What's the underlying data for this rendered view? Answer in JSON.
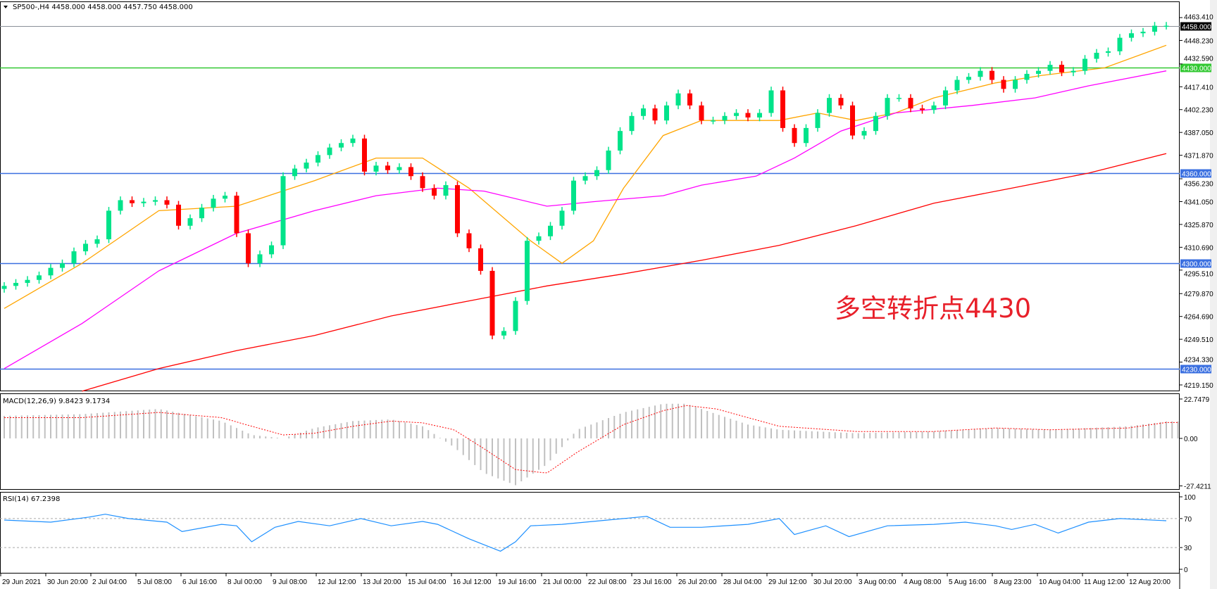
{
  "header": {
    "symbol_line": "SP500-,H4  4458.000 4458.000 4457.750 4458.000"
  },
  "annotation": {
    "text": "多空转折点4430",
    "color": "#e8202a"
  },
  "colors": {
    "bull": "#00e38a",
    "bear": "#ff0000",
    "ma_fast": "#ffa500",
    "ma_mid": "#ff00ff",
    "ma_slow": "#ff0000",
    "level_blue": "#3a6fe0",
    "level_green": "#32c832",
    "level_gray": "#8a9099",
    "macd_hist": "#c0c0c0",
    "macd_signal": "#ff0000",
    "rsi": "#1e90ff"
  },
  "chart_data": [
    {
      "type": "candlestick",
      "title": "SP500-,H4",
      "ylim": [
        4219.15,
        4463.41
      ],
      "y_ticks": [
        "4463.410",
        "4448.230",
        "4432.590",
        "4417.410",
        "4402.230",
        "4387.050",
        "4371.870",
        "4356.230",
        "4341.050",
        "4325.870",
        "4310.690",
        "4295.510",
        "4279.870",
        "4264.690",
        "4249.510",
        "4234.330",
        "4219.150"
      ],
      "x_tick_labels": [
        "29 Jun 2021",
        "30 Jun 20:00",
        "2 Jul 04:00",
        "5 Jul 08:00",
        "6 Jul 16:00",
        "8 Jul 00:00",
        "9 Jul 08:00",
        "12 Jul 12:00",
        "13 Jul 20:00",
        "15 Jul 04:00",
        "16 Jul 12:00",
        "19 Jul 16:00",
        "21 Jul 00:00",
        "22 Jul 08:00",
        "23 Jul 16:00",
        "26 Jul 20:00",
        "28 Jul 04:00",
        "29 Jul 12:00",
        "30 Jul 20:00",
        "3 Aug 00:00",
        "4 Aug 08:00",
        "5 Aug 16:00",
        "8 Aug 23:00",
        "10 Aug 04:00",
        "11 Aug 12:00",
        "12 Aug 20:00"
      ],
      "closes": [
        4285,
        4287,
        4289,
        4292,
        4297,
        4300,
        4308,
        4313,
        4316,
        4335,
        4342,
        4340,
        4341,
        4342,
        4339,
        4325,
        4330,
        4337,
        4343,
        4345,
        4320,
        4300,
        4306,
        4312,
        4358,
        4363,
        4367,
        4372,
        4377,
        4380,
        4383,
        4361,
        4365,
        4362,
        4364,
        4358,
        4350,
        4345,
        4352,
        4320,
        4310,
        4295,
        4252,
        4255,
        4275,
        4315,
        4318,
        4325,
        4335,
        4355,
        4358,
        4362,
        4375,
        4388,
        4398,
        4403,
        4395,
        4405,
        4413,
        4405,
        4395,
        4395,
        4398,
        4400,
        4397,
        4400,
        4415,
        4390,
        4380,
        4390,
        4400,
        4410,
        4405,
        4385,
        4388,
        4398,
        4410,
        4410,
        4403,
        4402,
        4405,
        4415,
        4422,
        4424,
        4428,
        4422,
        4416,
        4422,
        4426,
        4428,
        4432,
        4427,
        4428,
        4436,
        4440,
        4441,
        4450,
        4453,
        4454,
        4458,
        4458
      ],
      "moving_averages": [
        {
          "points": [
            [
              0,
              4270
            ],
            [
              6.7,
              4300
            ],
            [
              13.3,
              4335
            ],
            [
              20,
              4338
            ],
            [
              26.7,
              4355
            ],
            [
              32,
              4370
            ],
            [
              36,
              4370
            ],
            [
              40,
              4350
            ],
            [
              45.3,
              4315
            ],
            [
              48,
              4300
            ],
            [
              50.7,
              4315
            ],
            [
              53.3,
              4350
            ],
            [
              56.7,
              4385
            ],
            [
              60,
              4395
            ],
            [
              64,
              4395
            ],
            [
              66.7,
              4395
            ],
            [
              70,
              4400
            ],
            [
              73.3,
              4395
            ],
            [
              76.7,
              4400
            ],
            [
              80,
              4410
            ],
            [
              85.3,
              4420
            ],
            [
              89.3,
              4425
            ],
            [
              94.7,
              4430
            ],
            [
              100,
              4445
            ]
          ]
        },
        {
          "points": [
            [
              0,
              4230
            ],
            [
              6.7,
              4260
            ],
            [
              13.3,
              4295
            ],
            [
              20,
              4320
            ],
            [
              26.7,
              4335
            ],
            [
              32,
              4345
            ],
            [
              37.3,
              4350
            ],
            [
              41.3,
              4348
            ],
            [
              46.7,
              4338
            ],
            [
              50.7,
              4341
            ],
            [
              56.7,
              4345
            ],
            [
              60,
              4352
            ],
            [
              64.7,
              4358
            ],
            [
              68,
              4370
            ],
            [
              72,
              4388
            ],
            [
              76.7,
              4400
            ],
            [
              83.3,
              4405
            ],
            [
              88.7,
              4410
            ],
            [
              93.3,
              4418
            ],
            [
              100,
              4428
            ]
          ]
        },
        {
          "points": [
            [
              6.7,
              4215
            ],
            [
              13.3,
              4230
            ],
            [
              20,
              4242
            ],
            [
              26.7,
              4252
            ],
            [
              33.3,
              4265
            ],
            [
              40,
              4275
            ],
            [
              46.7,
              4285
            ],
            [
              53.3,
              4293
            ],
            [
              60,
              4302
            ],
            [
              66.7,
              4312
            ],
            [
              73.3,
              4325
            ],
            [
              80,
              4340
            ],
            [
              86.7,
              4350
            ],
            [
              93.3,
              4360
            ],
            [
              100,
              4373
            ]
          ]
        }
      ],
      "levels": [
        {
          "value": 4458.0,
          "label": "4458.000",
          "kind": "current"
        },
        {
          "value": 4430.0,
          "label": "4430.000",
          "kind": "green"
        },
        {
          "value": 4360.0,
          "label": "4360.000",
          "kind": "blue"
        },
        {
          "value": 4300.0,
          "label": "4300.000",
          "kind": "blue"
        },
        {
          "value": 4230.0,
          "label": "4230.000",
          "kind": "blue"
        }
      ]
    },
    {
      "type": "bar+line",
      "title": "MACD(12,26,9) 9.8423 9.1734",
      "ylim": [
        -27.4211,
        22.7479
      ],
      "y_ticks": [
        "22.7479",
        "0.00",
        "-27.4211"
      ],
      "histogram": [
        [
          0,
          13
        ],
        [
          6.7,
          14
        ],
        [
          13.3,
          17
        ],
        [
          18.7,
          10
        ],
        [
          21.3,
          2
        ],
        [
          24,
          0
        ],
        [
          26.7,
          6
        ],
        [
          30,
          10
        ],
        [
          33.3,
          11
        ],
        [
          36,
          7
        ],
        [
          38.7,
          -5
        ],
        [
          41.3,
          -20
        ],
        [
          44,
          -27
        ],
        [
          46.7,
          -15
        ],
        [
          49.3,
          5
        ],
        [
          53.3,
          15
        ],
        [
          56.7,
          20
        ],
        [
          58.7,
          20
        ],
        [
          61.3,
          14
        ],
        [
          64,
          8
        ],
        [
          66.7,
          5
        ],
        [
          73.3,
          3
        ],
        [
          80,
          4
        ],
        [
          85.3,
          6
        ],
        [
          90,
          5
        ],
        [
          96.7,
          7
        ],
        [
          100,
          9.8
        ]
      ],
      "signal": [
        [
          0,
          12
        ],
        [
          6.7,
          12
        ],
        [
          13.3,
          15
        ],
        [
          18.7,
          12
        ],
        [
          21.3,
          7
        ],
        [
          24,
          2
        ],
        [
          26.7,
          3
        ],
        [
          30,
          7
        ],
        [
          33.3,
          10
        ],
        [
          36,
          9
        ],
        [
          38.7,
          5
        ],
        [
          41.3,
          -6
        ],
        [
          44,
          -18
        ],
        [
          46.7,
          -20
        ],
        [
          49.3,
          -8
        ],
        [
          53.3,
          8
        ],
        [
          56.7,
          16
        ],
        [
          58.7,
          19
        ],
        [
          61.3,
          17
        ],
        [
          64,
          12
        ],
        [
          66.7,
          7
        ],
        [
          73.3,
          4
        ],
        [
          80,
          4
        ],
        [
          85.3,
          6
        ],
        [
          90,
          5
        ],
        [
          96.7,
          6
        ],
        [
          100,
          9.2
        ]
      ]
    },
    {
      "type": "line",
      "title": "RSI(14) 67.2398",
      "ylim": [
        0,
        100
      ],
      "y_ticks": [
        "100",
        "70",
        "30",
        "0"
      ],
      "levels": [
        70,
        30
      ],
      "values": [
        [
          0,
          68
        ],
        [
          4,
          65
        ],
        [
          7.3,
          72
        ],
        [
          8.7,
          76
        ],
        [
          10.7,
          70
        ],
        [
          14,
          65
        ],
        [
          15.3,
          52
        ],
        [
          18.7,
          62
        ],
        [
          20,
          60
        ],
        [
          21.3,
          38
        ],
        [
          23.3,
          58
        ],
        [
          25.3,
          66
        ],
        [
          28,
          60
        ],
        [
          30.7,
          70
        ],
        [
          33.3,
          60
        ],
        [
          36,
          66
        ],
        [
          37.3,
          62
        ],
        [
          40,
          42
        ],
        [
          42.7,
          25
        ],
        [
          44,
          38
        ],
        [
          45.3,
          60
        ],
        [
          48,
          62
        ],
        [
          53.3,
          70
        ],
        [
          55.3,
          73
        ],
        [
          57.3,
          58
        ],
        [
          60,
          58
        ],
        [
          64,
          62
        ],
        [
          66.7,
          70
        ],
        [
          68,
          48
        ],
        [
          70.7,
          60
        ],
        [
          72.7,
          45
        ],
        [
          76,
          60
        ],
        [
          80,
          62
        ],
        [
          82.7,
          65
        ],
        [
          85.3,
          60
        ],
        [
          86.7,
          55
        ],
        [
          88.7,
          62
        ],
        [
          90.7,
          50
        ],
        [
          93.3,
          65
        ],
        [
          96,
          70
        ],
        [
          100,
          67
        ]
      ]
    }
  ]
}
